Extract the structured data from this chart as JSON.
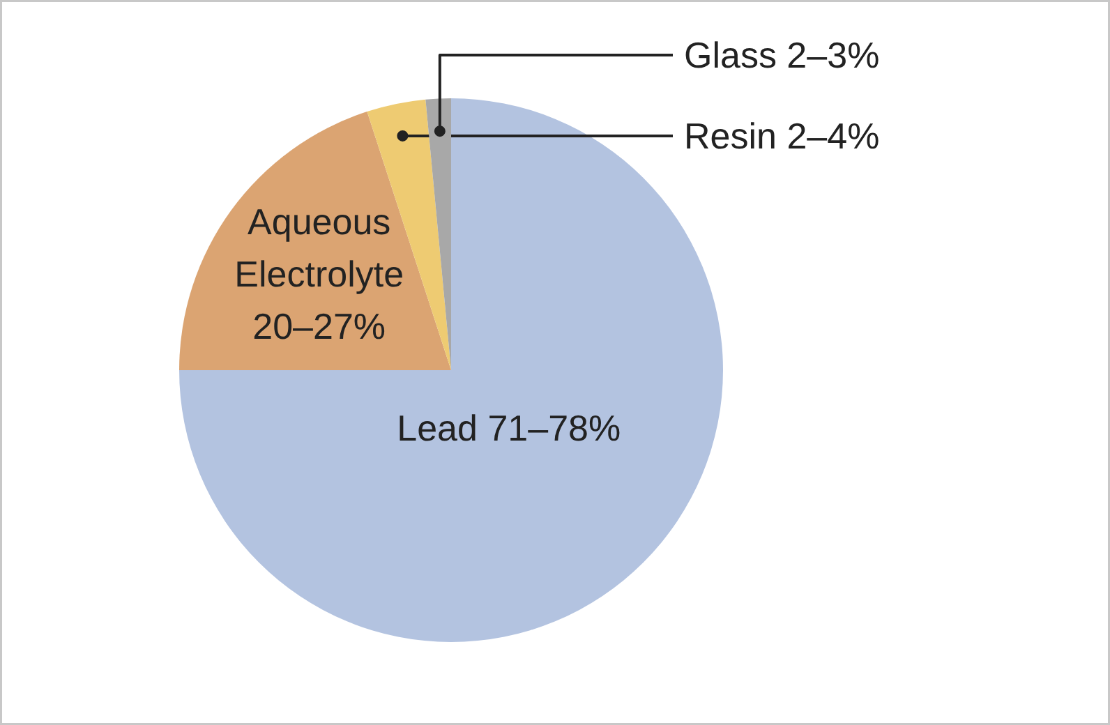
{
  "chart_data": {
    "type": "pie",
    "categories": [
      "Lead 71–78%",
      "Aqueous Electrolyte 20–27%",
      "Resin 2–4%",
      "Glass 2–3%"
    ],
    "values": [
      75,
      20,
      3.5,
      1.5
    ],
    "colors": [
      "#b3c3e0",
      "#dba472",
      "#eecb72",
      "#a8a8a8"
    ]
  }
}
